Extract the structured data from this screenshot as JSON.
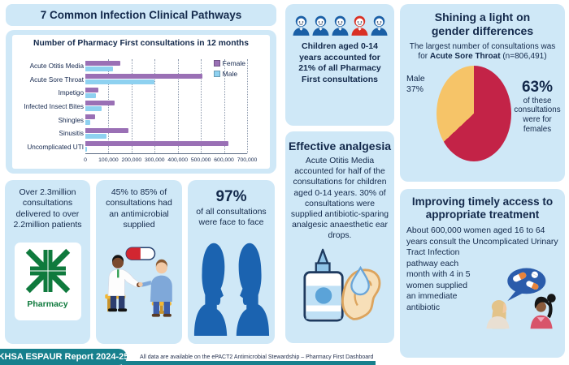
{
  "colors": {
    "panel_bg": "#cfe8f7",
    "navy_text": "#13294b",
    "female_bar": "#9a70b5",
    "male_bar": "#8ed1f0",
    "pie_female": "#c32347",
    "pie_male": "#f6c468",
    "teal_footer": "#17808d",
    "pharmacy_green": "#0f7a3d",
    "child_blue": "#1a5fa6",
    "child_red": "#d93025",
    "silhouette_blue": "#1b63b0"
  },
  "header": {
    "title": "7 Common Infection Clinical Pathways"
  },
  "chart_data": [
    {
      "type": "bar",
      "orientation": "horizontal",
      "title": "Number of Pharmacy First consultations in 12 months",
      "categories": [
        "Acute Otitis Media",
        "Acute Sore Throat",
        "Impetigo",
        "Infected Insect Bites",
        "Shingles",
        "Sinusitis",
        "Uncomplicated UTI"
      ],
      "series": [
        {
          "name": "Female",
          "color": "#9a70b5",
          "values": [
            150000,
            508000,
            57000,
            128000,
            43000,
            188000,
            620000
          ]
        },
        {
          "name": "Male",
          "color": "#8ed1f0",
          "values": [
            118000,
            298000,
            45000,
            70000,
            20000,
            90000,
            8000
          ]
        }
      ],
      "xlim": [
        0,
        700000
      ],
      "x_ticks": [
        "0",
        "100,000",
        "200,000",
        "300,000",
        "400,000",
        "500,000",
        "600,000",
        "700,000"
      ],
      "gridlines": "dotted-vertical",
      "legend_position": "top-right-inside"
    },
    {
      "type": "pie",
      "labels": [
        "Female",
        "Male"
      ],
      "values": [
        63,
        37
      ],
      "unit": "%",
      "colors": [
        "#c32347",
        "#f6c468"
      ],
      "context": "Acute Sore Throat (n=806,491)"
    }
  ],
  "children_panel": {
    "icon_colors": [
      "#1a5fa6",
      "#1a5fa6",
      "#1a5fa6",
      "#d93025",
      "#1a5fa6"
    ],
    "text_pre": "Children aged 0-14 years accounted for ",
    "text_bold": "21%",
    "text_post": " of all Pharmacy First consultations"
  },
  "analgesia_panel": {
    "title": "Effective analgesia",
    "body": "Acute Otitis Media accounted for half of the consultations for children aged 0-14 years. 30% of consultations were supplied antibiotic-sparing analgesic anaesthetic ear drops."
  },
  "gender_panel": {
    "title": "Shining a light on gender differences",
    "body_pre": "The largest number of consultations was for ",
    "body_bold": "Acute Sore Throat",
    "body_post": " (n=806,491)",
    "male_label": "Male",
    "male_pct": "37%",
    "female_pct": "63%",
    "female_caption": "of these consultations were for females"
  },
  "improving_panel": {
    "title": "Improving timely access to appropriate treatment",
    "body": "About 600,000 women aged 16 to 64 years consult the Uncomplicated Urinary Tract Infection pathway each month with 4 in 5 women supplied an immediate antibiotic"
  },
  "stats": {
    "consultations": {
      "text": "Over 2.3million consultations delivered to over 2.2million patients",
      "icon_label": "Pharmacy"
    },
    "antimicrobial": {
      "text": "45% to 85% of consultations had an antimicrobial supplied"
    },
    "face_to_face": {
      "pct": "97%",
      "text": "of all consultations were face to face"
    }
  },
  "footer": {
    "badge": "KHSA ESPAUR Report 2024-25",
    "note": "All data are available on the ePACT2 Antimicrobial Stewardship – Pharmacy First Dashboard"
  }
}
